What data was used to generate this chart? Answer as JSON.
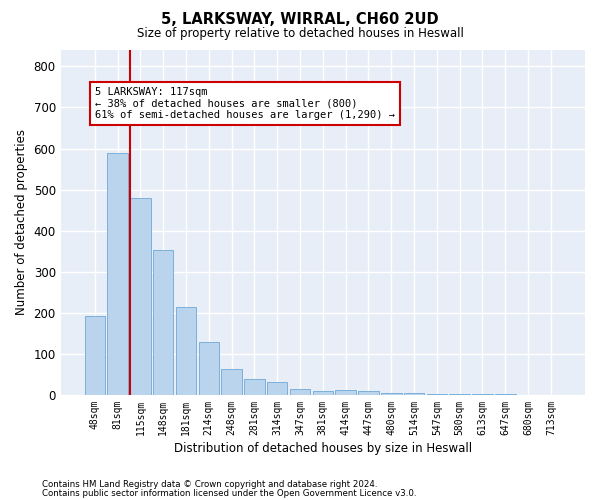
{
  "title1": "5, LARKSWAY, WIRRAL, CH60 2UD",
  "title2": "Size of property relative to detached houses in Heswall",
  "xlabel": "Distribution of detached houses by size in Heswall",
  "ylabel": "Number of detached properties",
  "bar_labels": [
    "48sqm",
    "81sqm",
    "115sqm",
    "148sqm",
    "181sqm",
    "214sqm",
    "248sqm",
    "281sqm",
    "314sqm",
    "347sqm",
    "381sqm",
    "414sqm",
    "447sqm",
    "480sqm",
    "514sqm",
    "547sqm",
    "580sqm",
    "613sqm",
    "647sqm",
    "680sqm",
    "713sqm"
  ],
  "bar_values": [
    192,
    588,
    480,
    352,
    215,
    130,
    62,
    38,
    32,
    15,
    10,
    11,
    9,
    5,
    5,
    3,
    3,
    2,
    2,
    1,
    1
  ],
  "bar_color": "#bad4ed",
  "bar_edge_color": "#6fa8d6",
  "vline_color": "#cc0000",
  "annotation_text": "5 LARKSWAY: 117sqm\n← 38% of detached houses are smaller (800)\n61% of semi-detached houses are larger (1,290) →",
  "annotation_box_color": "#cc0000",
  "annotation_fill": "#ffffff",
  "ylim": [
    0,
    840
  ],
  "yticks": [
    0,
    100,
    200,
    300,
    400,
    500,
    600,
    700,
    800
  ],
  "background_color": "#e8eef7",
  "grid_color": "#ffffff",
  "footnote1": "Contains HM Land Registry data © Crown copyright and database right 2024.",
  "footnote2": "Contains public sector information licensed under the Open Government Licence v3.0."
}
